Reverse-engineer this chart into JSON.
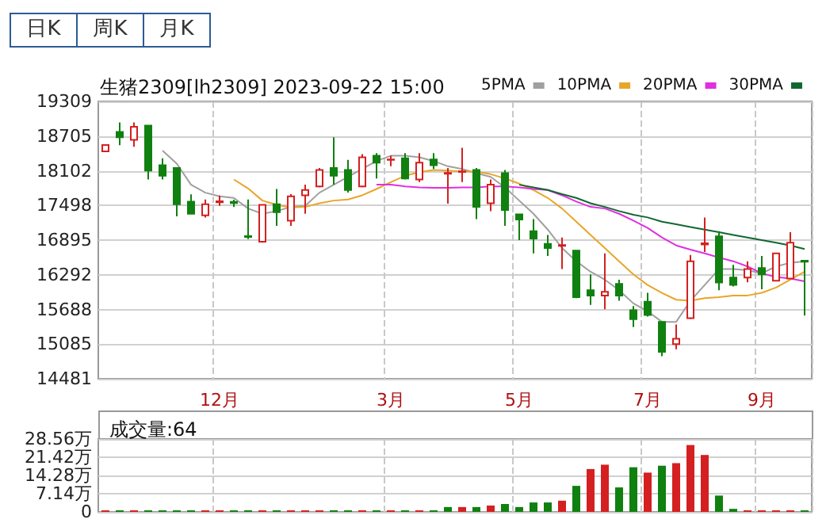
{
  "chart_data": [
    {
      "type": "candlestick",
      "title": "生猪2309[lh2309] 2023-09-22 15:00",
      "annotations": [
        "日K",
        "周K",
        "月K"
      ],
      "categories": [
        null,
        null,
        null,
        null,
        null,
        null,
        null,
        null,
        "12月",
        null,
        null,
        null,
        null,
        null,
        null,
        null,
        null,
        null,
        null,
        null,
        "3月",
        null,
        null,
        null,
        null,
        null,
        null,
        null,
        null,
        "5月",
        null,
        null,
        null,
        null,
        null,
        null,
        null,
        null,
        "7月",
        null,
        null,
        null,
        null,
        null,
        null,
        null,
        "9月",
        null,
        null,
        null
      ],
      "ohlc": [
        [
          18440,
          18560,
          18430,
          18550
        ],
        [
          18777,
          18942,
          18547,
          18685
        ],
        [
          18639,
          18942,
          18520,
          18868
        ],
        [
          18887,
          18887,
          17950,
          18106
        ],
        [
          18198,
          18318,
          17950,
          18015
        ],
        [
          18152,
          18152,
          17308,
          17519
        ],
        [
          17565,
          17693,
          17345,
          17354
        ],
        [
          17326,
          17602,
          17289,
          17519
        ],
        [
          17555,
          17670,
          17490,
          17570
        ],
        [
          17560,
          17600,
          17470,
          17540
        ],
        [
          16965,
          17602,
          16913,
          16950
        ],
        [
          16867,
          17510,
          16849,
          17510
        ],
        [
          17519,
          17785,
          17143,
          17381
        ],
        [
          17234,
          17694,
          17143,
          17657
        ],
        [
          17675,
          17859,
          17354,
          17767
        ],
        [
          17831,
          18152,
          17813,
          18116
        ],
        [
          18152,
          18685,
          17859,
          18015
        ],
        [
          18116,
          18290,
          17721,
          17767
        ],
        [
          17831,
          18391,
          17813,
          18336
        ],
        [
          18363,
          18409,
          17969,
          18244
        ],
        [
          18290,
          18363,
          18180,
          18300
        ],
        [
          18318,
          18409,
          17950,
          17969
        ],
        [
          17950,
          18409,
          17904,
          18244
        ],
        [
          18299,
          18409,
          18134,
          18198
        ],
        [
          18050,
          18152,
          17528,
          18065
        ],
        [
          18080,
          18501,
          17904,
          18090
        ],
        [
          18116,
          18152,
          17262,
          17473
        ],
        [
          17537,
          17950,
          17400,
          17859
        ],
        [
          18061,
          18116,
          17143,
          17418
        ],
        [
          17344,
          17344,
          16895,
          17253
        ],
        [
          17051,
          17262,
          16665,
          16922
        ],
        [
          16830,
          16986,
          16619,
          16757
        ],
        [
          16795,
          16941,
          16390,
          16810
        ],
        [
          16711,
          16711,
          15885,
          15903
        ],
        [
          16023,
          16298,
          15766,
          15931
        ],
        [
          15931,
          16665,
          15692,
          15995
        ],
        [
          16133,
          16206,
          15839,
          15931
        ],
        [
          15675,
          15747,
          15380,
          15518
        ],
        [
          15821,
          15977,
          15564,
          15591
        ],
        [
          15472,
          15472,
          14875,
          14949
        ],
        [
          15086,
          15426,
          14994,
          15178
        ],
        [
          15536,
          16638,
          15518,
          16527
        ],
        [
          16820,
          17289,
          16689,
          16840
        ],
        [
          16959,
          17051,
          16023,
          16158
        ],
        [
          16243,
          16463,
          16087,
          16114
        ],
        [
          16243,
          16527,
          16161,
          16390
        ],
        [
          16408,
          16619,
          16041,
          16298
        ],
        [
          16188,
          16665,
          16188,
          16665
        ],
        [
          16225,
          17032,
          16225,
          16849
        ],
        [
          16535,
          16545,
          15582,
          16520
        ]
      ],
      "series": [
        {
          "name": "5PMA",
          "type": "line",
          "color": "#a0a0a0",
          "values": [
            null,
            null,
            null,
            null,
            18455,
            18226,
            17859,
            17721,
            17657,
            17629,
            17445,
            17354,
            17400,
            17473,
            17491,
            17721,
            17859,
            17996,
            18134,
            18272,
            18363,
            18363,
            18336,
            18272,
            18180,
            18134,
            18061,
            17996,
            17813,
            17583,
            17354,
            17078,
            16757,
            16527,
            16344,
            16206,
            16023,
            15793,
            15655,
            15472,
            15472,
            15839,
            16114,
            16390,
            16390,
            16371,
            16316,
            16436,
            16500,
            16527
          ]
        },
        {
          "name": "10PMA",
          "type": "line",
          "color": "#e8a628",
          "values": [
            null,
            null,
            null,
            null,
            null,
            null,
            null,
            null,
            null,
            17950,
            17794,
            17583,
            17510,
            17464,
            17473,
            17537,
            17583,
            17602,
            17675,
            17785,
            17904,
            18015,
            18079,
            18116,
            18106,
            18088,
            18088,
            18042,
            17969,
            17877,
            17767,
            17629,
            17445,
            17216,
            16986,
            16757,
            16527,
            16298,
            16114,
            15977,
            15857,
            15839,
            15885,
            15903,
            15931,
            15931,
            15977,
            16069,
            16206,
            16344
          ]
        },
        {
          "name": "20PMA",
          "type": "line",
          "color": "#e030e0",
          "values": [
            null,
            null,
            null,
            null,
            null,
            null,
            null,
            null,
            null,
            null,
            null,
            null,
            null,
            null,
            null,
            null,
            null,
            null,
            null,
            17859,
            17859,
            17831,
            17813,
            17804,
            17804,
            17813,
            17813,
            17831,
            17831,
            17813,
            17785,
            17767,
            17675,
            17565,
            17473,
            17445,
            17354,
            17234,
            17106,
            16941,
            16803,
            16730,
            16665,
            16592,
            16527,
            16436,
            16316,
            16252,
            16225,
            16179
          ]
        },
        {
          "name": "30PMA",
          "type": "line",
          "color": "#106830",
          "values": [
            null,
            null,
            null,
            null,
            null,
            null,
            null,
            null,
            null,
            null,
            null,
            null,
            null,
            null,
            null,
            null,
            null,
            null,
            null,
            null,
            null,
            null,
            null,
            null,
            null,
            null,
            null,
            null,
            null,
            17859,
            17813,
            17767,
            17694,
            17629,
            17537,
            17473,
            17400,
            17336,
            17290,
            17216,
            17170,
            17124,
            17078,
            17032,
            16986,
            16941,
            16895,
            16849,
            16803,
            16739
          ]
        }
      ],
      "ylim": [
        14481,
        19309
      ],
      "yticks": [
        14481,
        15085,
        15688,
        16292,
        16895,
        17498,
        18102,
        18705,
        19309
      ],
      "grid": true,
      "legend": "top right",
      "marker": "none"
    },
    {
      "type": "bar",
      "title": "成交量:64",
      "categories": [
        null,
        null,
        null,
        null,
        null,
        null,
        null,
        null,
        null,
        null,
        null,
        null,
        null,
        null,
        null,
        null,
        null,
        null,
        null,
        null,
        null,
        null,
        null,
        null,
        null,
        null,
        null,
        null,
        null,
        null,
        null,
        null,
        null,
        null,
        null,
        null,
        null,
        null,
        null,
        null,
        null,
        null,
        null,
        null,
        null,
        null,
        null,
        null,
        null,
        null
      ],
      "values": [
        0.2,
        0.2,
        0.2,
        0.2,
        0.2,
        0.2,
        0.2,
        0.2,
        0.2,
        0.2,
        0.2,
        0.2,
        0.2,
        0.2,
        0.2,
        0.2,
        0.2,
        0.2,
        0.2,
        0.2,
        0.2,
        0.2,
        0.2,
        0.2,
        1.9,
        1.9,
        1.9,
        2.5,
        3.1,
        1.9,
        3.7,
        3.7,
        4.4,
        10.2,
        16.8,
        18.5,
        9.6,
        17.5,
        15.4,
        18.1,
        19.1,
        26.2,
        22.3,
        6.4,
        1.2,
        0.2,
        0.2,
        0.2,
        0.2,
        0.0064
      ],
      "colors": [
        "#d42020",
        "#108010",
        "#d42020",
        "#108010",
        "#108010",
        "#108010",
        "#108010",
        "#d42020",
        "#d42020",
        "#108010",
        "#108010",
        "#d42020",
        "#108010",
        "#d42020",
        "#d42020",
        "#d42020",
        "#108010",
        "#108010",
        "#d42020",
        "#108010",
        "#d42020",
        "#108010",
        "#d42020",
        "#108010",
        "#108010",
        "#d42020",
        "#108010",
        "#d42020",
        "#108010",
        "#108010",
        "#108010",
        "#108010",
        "#d42020",
        "#108010",
        "#d42020",
        "#d42020",
        "#108010",
        "#108010",
        "#d42020",
        "#108010",
        "#d42020",
        "#d42020",
        "#d42020",
        "#108010",
        "#108010",
        "#d42020",
        "#d42020",
        "#d42020",
        "#d42020",
        "#108010"
      ],
      "ylim": [
        0,
        28.56
      ],
      "yticks": [
        0,
        {
          "value": 7.14,
          "label": "7.14万"
        },
        {
          "value": 14.28,
          "label": "14.28万"
        },
        {
          "value": 21.42,
          "label": "21.42万"
        },
        {
          "value": 28.56,
          "label": "28.56万"
        }
      ],
      "grid": true,
      "tick_labels": "y"
    }
  ]
}
